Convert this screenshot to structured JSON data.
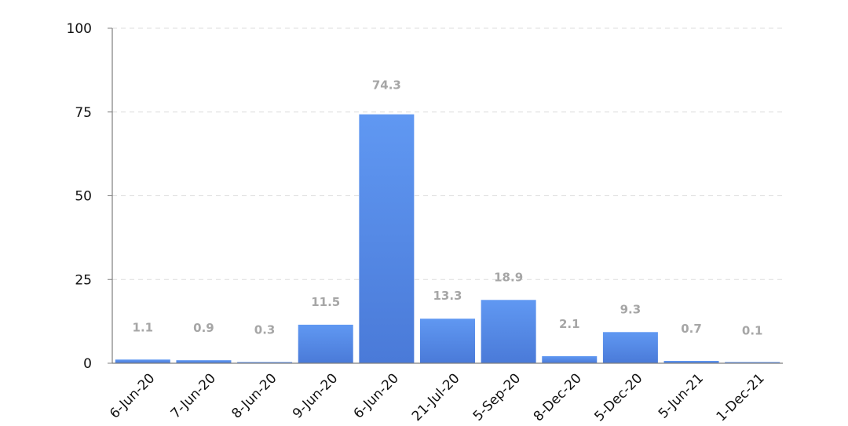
{
  "chart_data": {
    "type": "bar",
    "title": "",
    "xlabel": "",
    "ylabel": "",
    "categories": [
      "6-Jun-20",
      "7-Jun-20",
      "8-Jun-20",
      "9-Jun-20",
      "6-Jun-20",
      "21-Jul-20",
      "5-Sep-20",
      "8-Dec-20",
      "5-Dec-20",
      "5-Jun-21",
      "1-Dec-21"
    ],
    "values": [
      1.1,
      0.9,
      0.3,
      11.5,
      74.3,
      13.3,
      18.9,
      2.1,
      9.3,
      0.7,
      0.1
    ],
    "data_labels": [
      "1.1",
      "0.9",
      "0.3",
      "11.5",
      "74.3",
      "13.3",
      "18.9",
      "2.1",
      "9.3",
      "0.7",
      "0.1"
    ],
    "ylim": [
      0,
      100
    ],
    "yticks": [
      0,
      25,
      50,
      75,
      100
    ],
    "grid": true,
    "legend": "none",
    "colors": {
      "bar_top": "#6098f2",
      "bar_bottom": "#4a7ad8",
      "label": "#a6a6a6",
      "grid": "#dddddd",
      "axis": "#7f7f7f"
    }
  }
}
